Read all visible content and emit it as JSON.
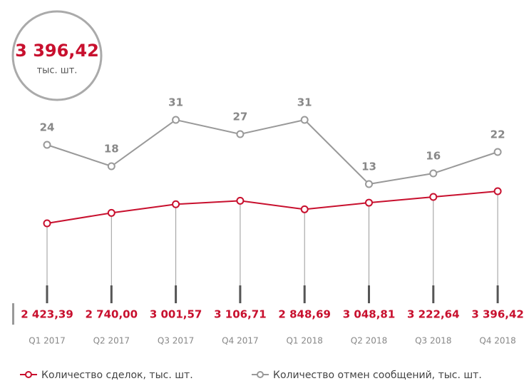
{
  "chart_data": {
    "type": "line",
    "categories": [
      "Q1 2017",
      "Q2 2017",
      "Q3 2017",
      "Q4 2017",
      "Q1 2018",
      "Q2 2018",
      "Q3 2018",
      "Q4 2018"
    ],
    "series": [
      {
        "name": "Количество сделок, тыс. шт.",
        "color": "#c8102e",
        "values": [
          2423.39,
          2740.0,
          3001.57,
          3106.71,
          2848.69,
          3048.81,
          3222.64,
          3396.42
        ],
        "value_labels": [
          "2 423,39",
          "2 740,00",
          "3 001,57",
          "3 106,71",
          "2 848,69",
          "3 048,81",
          "3 222,64",
          "3 396,42"
        ]
      },
      {
        "name": "Количество отмен сообщений, тыс. шт.",
        "color": "#999999",
        "values": [
          24,
          18,
          31,
          27,
          31,
          13,
          16,
          22
        ]
      }
    ],
    "badge_unit": "тыс. шт."
  }
}
